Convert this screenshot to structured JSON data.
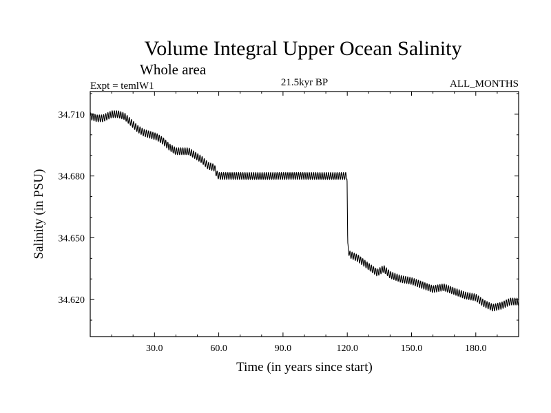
{
  "chart_data": {
    "type": "line",
    "title": "Volume Integral Upper Ocean Salinity",
    "subtitle": "Whole area",
    "experiment": "Expt = temlW1",
    "period": "21.5kyr BP",
    "months": "ALL_MONTHS",
    "xlabel": "Time (in years since start)",
    "ylabel": "Salinity (in PSU)",
    "xlim": [
      0,
      200
    ],
    "ylim": [
      34.602,
      34.721
    ],
    "xticks": [
      30.0,
      60.0,
      90.0,
      120.0,
      150.0,
      180.0
    ],
    "xtick_labels": [
      "30.0",
      "60.0",
      "90.0",
      "120.0",
      "150.0",
      "180.0"
    ],
    "yticks": [
      34.62,
      34.65,
      34.68,
      34.71
    ],
    "ytick_labels": [
      "34.620",
      "34.650",
      "34.680",
      "34.710"
    ],
    "seasonal_amplitude": 0.0017,
    "series": [
      {
        "name": "Salinity",
        "x": [
          0,
          3,
          6,
          10,
          13,
          16,
          19,
          22,
          25,
          28,
          31,
          34,
          37,
          40,
          43,
          46,
          49,
          52,
          55,
          58,
          59,
          60,
          70,
          80,
          90,
          100,
          110,
          119.9,
          120.2,
          121,
          125,
          130,
          134,
          137,
          140,
          145,
          150,
          155,
          160,
          165,
          170,
          175,
          180,
          184,
          188,
          192,
          196,
          200
        ],
        "y": [
          34.709,
          34.708,
          34.708,
          34.71,
          34.71,
          34.709,
          34.706,
          34.703,
          34.701,
          34.7,
          34.699,
          34.697,
          34.694,
          34.692,
          34.692,
          34.692,
          34.69,
          34.688,
          34.685,
          34.684,
          34.681,
          34.68,
          34.68,
          34.68,
          34.68,
          34.68,
          34.68,
          34.68,
          34.646,
          34.642,
          34.64,
          34.636,
          34.633,
          34.635,
          34.632,
          34.63,
          34.629,
          34.627,
          34.625,
          34.626,
          34.624,
          34.622,
          34.621,
          34.618,
          34.616,
          34.617,
          34.619,
          34.619
        ]
      }
    ]
  }
}
